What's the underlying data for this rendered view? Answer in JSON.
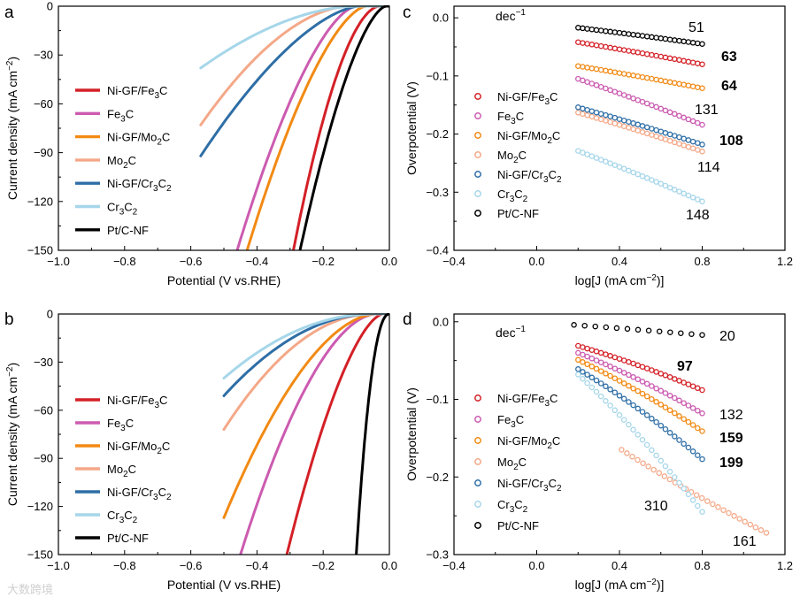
{
  "chart_data": [
    {
      "panel": "a",
      "type": "line",
      "xlabel": "Potential (V vs.RHE)",
      "ylabel": "Current density (mA cm-2)",
      "xlim": [
        -1.0,
        0.0
      ],
      "ylim": [
        -150,
        0
      ],
      "xticks": [
        "-1.0",
        "-0.8",
        "-0.6",
        "-0.4",
        "-0.2",
        "0.0"
      ],
      "yticks": [
        "-150",
        "-120",
        "-90",
        "-60",
        "-30",
        "0"
      ],
      "legend_position": "left",
      "series": [
        {
          "name": "Ni-GF/Fe3C",
          "color": "#d42027",
          "onset": -0.03,
          "end": [
            -0.29,
            -150
          ],
          "curv": 1.8
        },
        {
          "name": "Fe3C",
          "color": "#cc5bb0",
          "onset": -0.1,
          "end": [
            -0.46,
            -150
          ],
          "curv": 1.6
        },
        {
          "name": "Ni-GF/Mo2C",
          "color": "#f28a14",
          "onset": -0.07,
          "end": [
            -0.43,
            -150
          ],
          "curv": 1.6
        },
        {
          "name": "Mo2C",
          "color": "#f4a888",
          "onset": -0.12,
          "end": [
            -0.57,
            -73
          ],
          "curv": 1.8
        },
        {
          "name": "Ni-GF/Cr3C2",
          "color": "#2e6ea6",
          "onset": -0.09,
          "end": [
            -0.57,
            -92
          ],
          "curv": 1.6
        },
        {
          "name": "Cr3C2",
          "color": "#a6d6e9",
          "onset": -0.1,
          "end": [
            -0.57,
            -38
          ],
          "curv": 1.8
        },
        {
          "name": "Pt/C-NF",
          "color": "#000000",
          "onset": -0.01,
          "end": [
            -0.27,
            -150
          ],
          "curv": 1.6
        }
      ]
    },
    {
      "panel": "b",
      "type": "line",
      "xlabel": "Potential (V vs.RHE)",
      "ylabel": "Current density (mA cm-2)",
      "xlim": [
        -1.0,
        0.0
      ],
      "ylim": [
        -150,
        0
      ],
      "xticks": [
        "-1.0",
        "-0.8",
        "-0.6",
        "-0.4",
        "-0.2",
        "0.0"
      ],
      "yticks": [
        "-150",
        "-120",
        "-90",
        "-60",
        "-30",
        "0"
      ],
      "legend_position": "left",
      "series": [
        {
          "name": "Ni-GF/Fe3C",
          "color": "#d42027",
          "onset": -0.02,
          "end": [
            -0.31,
            -150
          ],
          "curv": 1.6
        },
        {
          "name": "Fe3C",
          "color": "#cc5bb0",
          "onset": -0.04,
          "end": [
            -0.45,
            -150
          ],
          "curv": 1.8
        },
        {
          "name": "Ni-GF/Mo2C",
          "color": "#f28a14",
          "onset": -0.04,
          "end": [
            -0.5,
            -127
          ],
          "curv": 1.8
        },
        {
          "name": "Mo2C",
          "color": "#f4a888",
          "onset": -0.05,
          "end": [
            -0.5,
            -72
          ],
          "curv": 2.0
        },
        {
          "name": "Ni-GF/Cr3C2",
          "color": "#2e6ea6",
          "onset": -0.05,
          "end": [
            -0.5,
            -51
          ],
          "curv": 2.0
        },
        {
          "name": "Cr3C2",
          "color": "#a6d6e9",
          "onset": -0.05,
          "end": [
            -0.5,
            -40
          ],
          "curv": 2.0
        },
        {
          "name": "Pt/C-NF",
          "color": "#000000",
          "onset": 0.0,
          "end": [
            -0.1,
            -150
          ],
          "curv": 2.2
        }
      ]
    },
    {
      "panel": "c",
      "type": "scatter",
      "xlabel": "log[J (mA cm-2)]",
      "ylabel": "Overpotential (V)",
      "xlim": [
        -0.4,
        1.2
      ],
      "ylim": [
        -0.4,
        0.02
      ],
      "xticks": [
        "-0.4",
        "0.0",
        "0.4",
        "0.8",
        "1.2"
      ],
      "yticks": [
        "-0.4",
        "-0.3",
        "-0.2",
        "-0.1",
        "0.0"
      ],
      "unit_label": "dec-1",
      "legend_position": "left",
      "series": [
        {
          "name": "Ni-GF/Fe3C",
          "color": "#d42027",
          "x": [
            0.2,
            0.8
          ],
          "y": [
            -0.042,
            -0.08
          ],
          "slope_label": "63",
          "label_bold": true
        },
        {
          "name": "Fe3C",
          "color": "#cc5bb0",
          "x": [
            0.2,
            0.8
          ],
          "y": [
            -0.105,
            -0.184
          ],
          "slope_label": "131",
          "label_bold": false
        },
        {
          "name": "Ni-GF/Mo2C",
          "color": "#f28a14",
          "x": [
            0.2,
            0.8
          ],
          "y": [
            -0.083,
            -0.121
          ],
          "slope_label": "64",
          "label_bold": true
        },
        {
          "name": "Mo2C",
          "color": "#f4a888",
          "x": [
            0.2,
            0.8
          ],
          "y": [
            -0.163,
            -0.23
          ],
          "slope_label": "114",
          "label_bold": false
        },
        {
          "name": "Ni-GF/Cr3C2",
          "color": "#2e6ea6",
          "x": [
            0.2,
            0.8
          ],
          "y": [
            -0.154,
            -0.218
          ],
          "slope_label": "108",
          "label_bold": true
        },
        {
          "name": "Cr3C2",
          "color": "#a6d6e9",
          "x": [
            0.2,
            0.8
          ],
          "y": [
            -0.229,
            -0.316
          ],
          "slope_label": "148",
          "label_bold": false
        },
        {
          "name": "Pt/C-NF",
          "color": "#000000",
          "x": [
            0.2,
            0.8
          ],
          "y": [
            -0.017,
            -0.045
          ],
          "slope_label": "51",
          "label_bold": false
        }
      ]
    },
    {
      "panel": "d",
      "type": "scatter",
      "xlabel": "log[J (mA cm-2)]",
      "ylabel": "Overpotential (V)",
      "xlim": [
        -0.4,
        1.2
      ],
      "ylim": [
        -0.3,
        0.01
      ],
      "xticks": [
        "-0.4",
        "0.0",
        "0.4",
        "0.8",
        "1.2"
      ],
      "yticks": [
        "-0.3",
        "-0.2",
        "-0.1",
        "0.0"
      ],
      "unit_label": "dec-1",
      "legend_position": "left",
      "series": [
        {
          "name": "Ni-GF/Fe3C",
          "color": "#d42027",
          "x": [
            0.2,
            0.8
          ],
          "y": [
            -0.031,
            -0.088
          ],
          "slope_label": "97",
          "label_bold": true
        },
        {
          "name": "Fe3C",
          "color": "#cc5bb0",
          "x": [
            0.2,
            0.8
          ],
          "y": [
            -0.04,
            -0.118
          ],
          "slope_label": "132",
          "label_bold": false
        },
        {
          "name": "Ni-GF/Mo2C",
          "color": "#f28a14",
          "x": [
            0.2,
            0.8
          ],
          "y": [
            -0.049,
            -0.141
          ],
          "slope_label": "159",
          "label_bold": true
        },
        {
          "name": "Mo2C",
          "color": "#f4a888",
          "x": [
            0.41,
            1.11
          ],
          "y": [
            -0.165,
            -0.272
          ],
          "slope_label": "161",
          "label_bold": false
        },
        {
          "name": "Ni-GF/Cr3C2",
          "color": "#2e6ea6",
          "x": [
            0.2,
            0.8
          ],
          "y": [
            -0.061,
            -0.177
          ],
          "slope_label": "199",
          "label_bold": true
        },
        {
          "name": "Cr3C2",
          "color": "#a6d6e9",
          "x": [
            0.2,
            0.8
          ],
          "y": [
            -0.068,
            -0.245
          ],
          "slope_label": "310",
          "label_bold": false
        },
        {
          "name": "Pt/C-NF",
          "color": "#000000",
          "x": [
            0.18,
            0.8
          ],
          "y": [
            -0.004,
            -0.017
          ],
          "slope_label": "20",
          "label_bold": false
        }
      ]
    }
  ],
  "watermark": "大数跨境"
}
